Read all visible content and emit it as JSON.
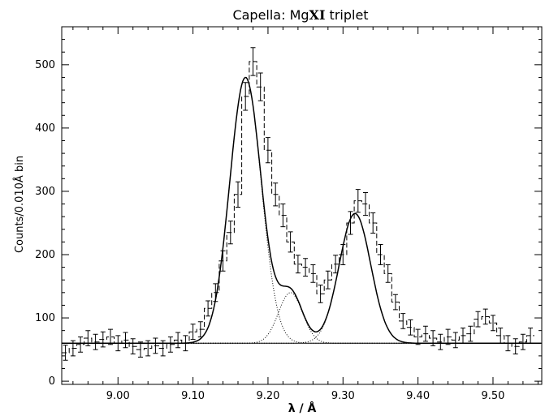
{
  "chart_data": {
    "type": "line",
    "title": "Capella: Mg XI triplet",
    "title_parts": {
      "prefix": "Capella: Mg",
      "ion": "XI",
      "suffix": " triplet"
    },
    "xlabel": "λ / Å",
    "ylabel": "Counts/0.010Å bin",
    "xlim": [
      8.925,
      9.565
    ],
    "ylim": [
      -5,
      560
    ],
    "xticks": [
      9.0,
      9.1,
      9.2,
      9.3,
      9.4,
      9.5
    ],
    "xtick_labels": [
      "9.00",
      "9.10",
      "9.20",
      "9.30",
      "9.40",
      "9.50"
    ],
    "yticks": [
      0,
      100,
      200,
      300,
      400,
      500
    ],
    "ytick_labels": [
      "0",
      "100",
      "200",
      "300",
      "400",
      "500"
    ],
    "grid": false,
    "continuum": 60,
    "observed": {
      "style": "dashed histogram with error bars",
      "x": [
        8.93,
        8.94,
        8.95,
        8.96,
        8.97,
        8.98,
        8.99,
        9.0,
        9.01,
        9.02,
        9.03,
        9.04,
        9.05,
        9.06,
        9.07,
        9.08,
        9.09,
        9.1,
        9.11,
        9.12,
        9.13,
        9.14,
        9.15,
        9.16,
        9.17,
        9.18,
        9.19,
        9.2,
        9.21,
        9.22,
        9.23,
        9.24,
        9.25,
        9.26,
        9.27,
        9.28,
        9.29,
        9.3,
        9.31,
        9.32,
        9.33,
        9.34,
        9.35,
        9.36,
        9.37,
        9.38,
        9.39,
        9.4,
        9.41,
        9.42,
        9.43,
        9.44,
        9.45,
        9.46,
        9.47,
        9.48,
        9.49,
        9.5,
        9.51,
        9.52,
        9.53,
        9.54,
        9.55
      ],
      "y": [
        45,
        52,
        58,
        68,
        62,
        66,
        70,
        60,
        65,
        55,
        50,
        52,
        56,
        52,
        58,
        65,
        60,
        78,
        82,
        115,
        140,
        190,
        235,
        295,
        450,
        505,
        465,
        365,
        295,
        262,
        220,
        185,
        180,
        170,
        138,
        160,
        185,
        200,
        250,
        285,
        280,
        250,
        200,
        170,
        125,
        95,
        85,
        70,
        75,
        68,
        62,
        70,
        65,
        72,
        75,
        98,
        102,
        92,
        72,
        60,
        55,
        62,
        72
      ],
      "err": [
        12,
        12,
        12,
        12,
        12,
        12,
        12,
        12,
        12,
        12,
        12,
        12,
        12,
        12,
        12,
        12,
        12,
        12,
        12,
        12,
        14,
        16,
        18,
        20,
        22,
        22,
        22,
        20,
        18,
        18,
        16,
        14,
        14,
        14,
        14,
        14,
        14,
        16,
        18,
        18,
        18,
        16,
        16,
        14,
        12,
        12,
        12,
        12,
        12,
        12,
        12,
        12,
        12,
        12,
        12,
        12,
        12,
        12,
        12,
        12,
        12,
        12,
        12
      ]
    },
    "model_components": [
      {
        "center": 9.17,
        "amplitude": 420,
        "sigma": 0.021
      },
      {
        "center": 9.23,
        "amplitude": 80,
        "sigma": 0.016
      },
      {
        "center": 9.316,
        "amplitude": 205,
        "sigma": 0.021
      }
    ]
  }
}
